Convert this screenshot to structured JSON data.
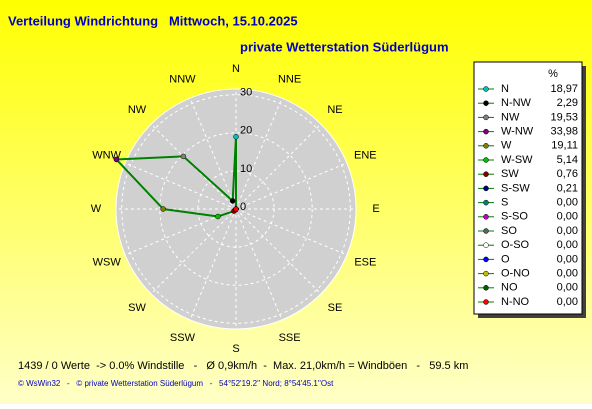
{
  "chart_data": {
    "type": "radar",
    "title": "Verteilung Windrichtung   Mittwoch, 15.10.2025",
    "subtitle": "private Wetterstation Süderlügum",
    "directions": [
      "N",
      "NNE",
      "NE",
      "ENE",
      "E",
      "ESE",
      "SE",
      "SSE",
      "S",
      "SSW",
      "SW",
      "WSW",
      "W",
      "WNW",
      "NW",
      "NNW"
    ],
    "legend_title": "%",
    "legend_labels": [
      "N",
      "N-NW",
      "NW",
      "W-NW",
      "W",
      "W-SW",
      "SW",
      "S-SW",
      "S",
      "S-SO",
      "SO",
      "O-SO",
      "O",
      "O-NO",
      "NO",
      "N-NO"
    ],
    "values": [
      18.97,
      2.29,
      19.53,
      33.98,
      19.11,
      5.14,
      0.76,
      0.21,
      0,
      0,
      0,
      0,
      0,
      0,
      0,
      0
    ],
    "value_labels": [
      "18,97",
      "2,29",
      "19,53",
      "33,98",
      "19,11",
      "5,14",
      "0,76",
      "0,21",
      "0,00",
      "0,00",
      "0,00",
      "0,00",
      "0,00",
      "0,00",
      "0,00",
      "0,00"
    ],
    "colors": [
      "#00c0c0",
      "#000000",
      "#808080",
      "#800080",
      "#808000",
      "#00c000",
      "#800000",
      "#000080",
      "#008080",
      "#c000c0",
      "#606060",
      "#ffffff",
      "#0000ff",
      "#c0c000",
      "#006000",
      "#ff0000"
    ],
    "line_color": "#008000",
    "rlim": [
      0,
      31.5
    ],
    "rticks": [
      0,
      10,
      20,
      30
    ],
    "footer": "1439 / 0 Werte  -> 0.0% Windstille   -   Ø 0,9km/h  -  Max. 21,0km/h = Windböen   -   59.5 km",
    "copyright": "© WsWin32   -   © private Wetterstation Süderlügum   -   54°52'19.2'' Nord; 8°54'45.1''Ost"
  }
}
